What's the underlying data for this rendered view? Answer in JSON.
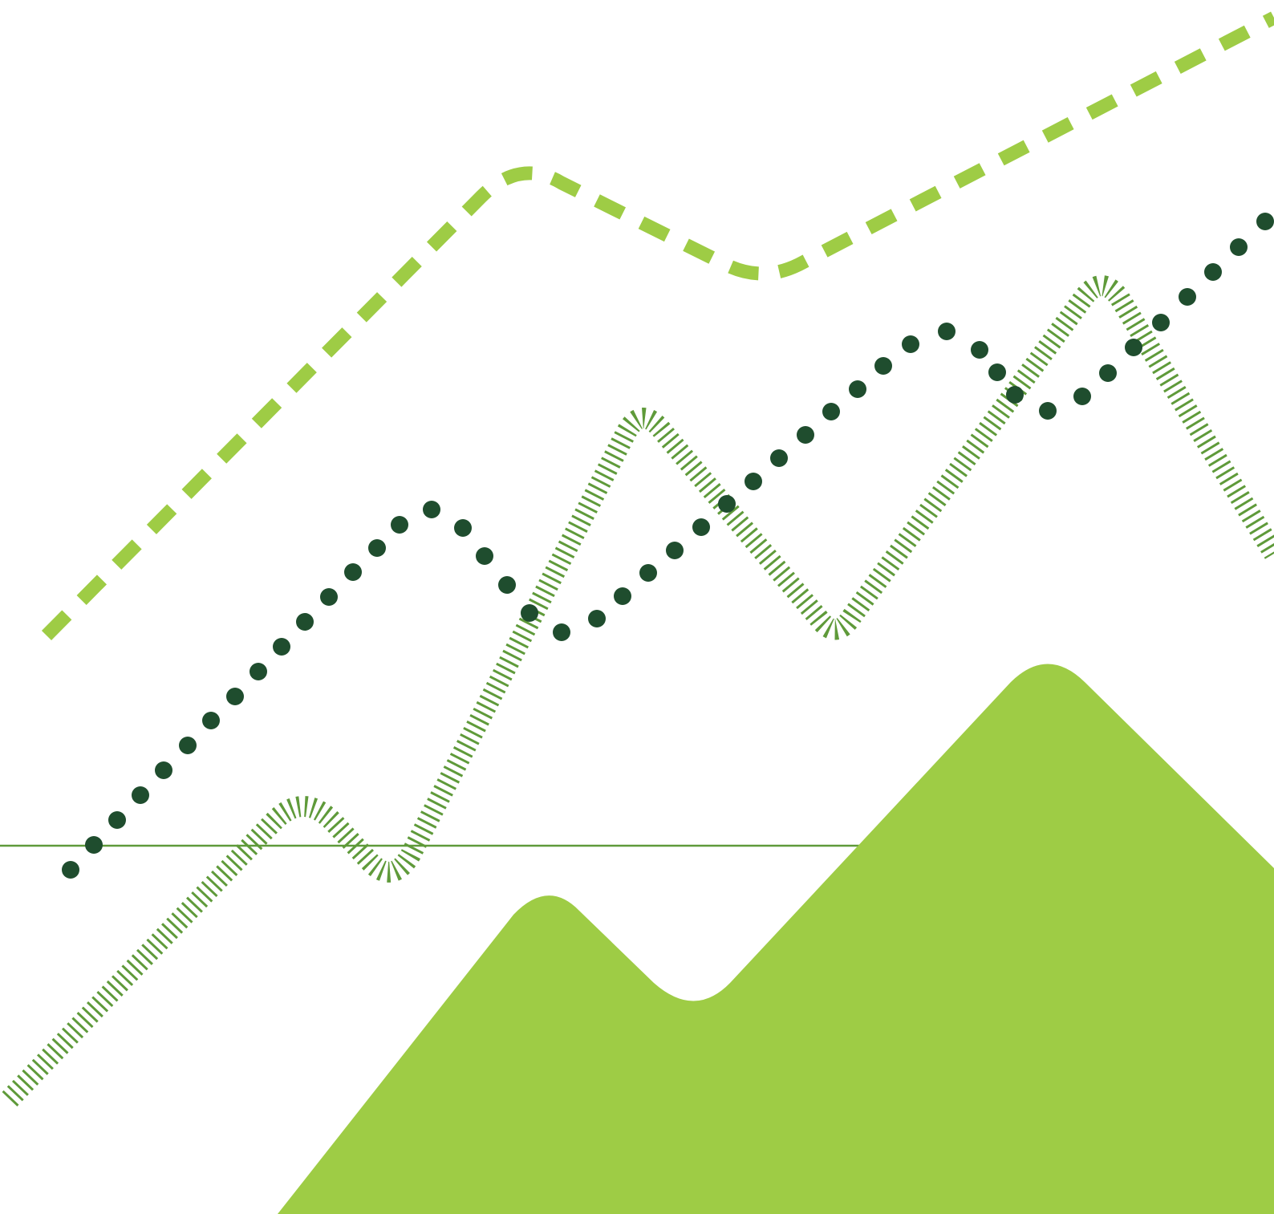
{
  "illustration": {
    "colors": {
      "background": "#ffffff",
      "mountain": "#9ecc45",
      "dashed_line": "#9ecc45",
      "dotted_line": "#1f4d2e",
      "hatched_line": "#5f9a3a",
      "baseline": "#5f9a3a"
    },
    "elements": [
      "area-mountains",
      "dashed-trend-line",
      "dotted-trend-line",
      "hatched-trend-line",
      "horizontal-baseline"
    ]
  }
}
